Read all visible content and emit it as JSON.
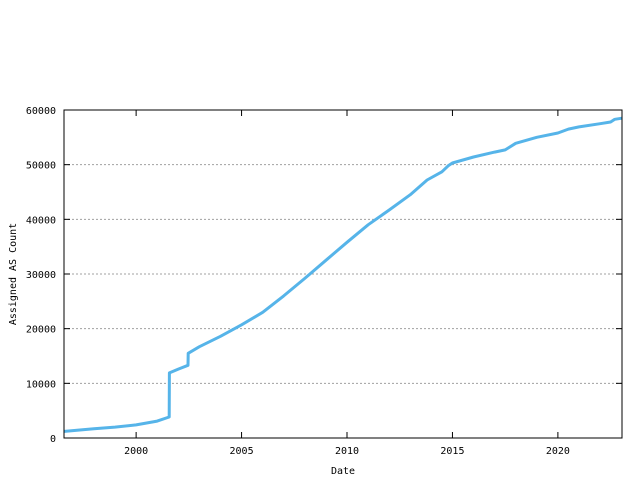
{
  "chart_data": {
    "type": "line",
    "title": "",
    "xlabel": "Date",
    "ylabel": "Assigned AS Count",
    "xlim": [
      1996.58,
      2023.04
    ],
    "ylim": [
      0,
      60000
    ],
    "x_ticks": [
      2000,
      2005,
      2010,
      2015,
      2020
    ],
    "y_ticks": [
      0,
      10000,
      20000,
      30000,
      40000,
      50000,
      60000
    ],
    "grid": "horizontal dotted",
    "line_color": "#56b4e9",
    "series": [
      {
        "x": [
          1996.6,
          1998,
          1999,
          2000,
          2001,
          2001.57,
          2001.58,
          2002,
          2002.46,
          2002.47,
          2003,
          2004,
          2005,
          2006,
          2007,
          2008,
          2009,
          2010,
          2011,
          2012,
          2013,
          2013.8,
          2014.5,
          2014.8,
          2015,
          2016,
          2017,
          2017.5,
          2018,
          2019,
          2020,
          2020.5,
          2021,
          2022,
          2022.5,
          2022.7,
          2023.04
        ],
        "y": [
          1200,
          1700,
          2000,
          2400,
          3100,
          3850,
          11900,
          12600,
          13300,
          15500,
          16700,
          18600,
          20700,
          23000,
          26000,
          29200,
          32500,
          35800,
          39000,
          41700,
          44500,
          47200,
          48700,
          49800,
          50300,
          51400,
          52300,
          52700,
          53900,
          55000,
          55800,
          56500,
          56900,
          57500,
          57800,
          58300,
          58500
        ]
      }
    ]
  }
}
